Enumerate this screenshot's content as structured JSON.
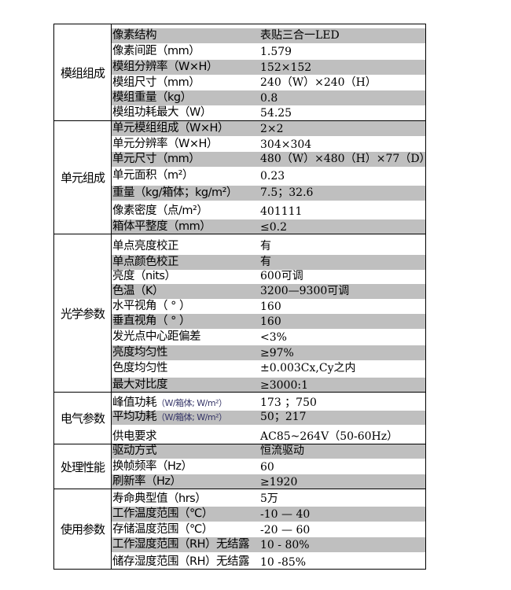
{
  "sections": [
    {
      "category": "模组组成",
      "rows": [
        {
          "label": "像素结构",
          "value": "表贴三合一LED"
        },
        {
          "label": "像素间距（mm）",
          "value": "1.579"
        },
        {
          "label": "模组分辨率（W×H）",
          "value": "152×152"
        },
        {
          "label": "模组尺寸（mm）",
          "value": "240（W）×240（H）"
        },
        {
          "label": "模组重量（kg）",
          "value": "0.8"
        },
        {
          "label": "模组功耗最大（W）",
          "value": "54.25"
        }
      ]
    },
    {
      "category": "单元组成",
      "rows": [
        {
          "label": "单元模组组成（W×H）",
          "value": "2×2"
        },
        {
          "label": "单元分辨率（W×H）",
          "value": "304×304"
        },
        {
          "label": "单元尺寸（mm）",
          "value": "480（W）×480（H）×77（D）"
        },
        {
          "label": "单元面积（m²）",
          "value": "0.23"
        },
        {
          "label": "重量（kg/箱体；kg/m²）",
          "value": "7.5；32.6"
        },
        {
          "label": "像素密度（点/m²）",
          "value": "401111"
        },
        {
          "label": "箱体平整度（mm）",
          "value": "≤0.2"
        }
      ]
    },
    {
      "category": "光学参数",
      "rows": [
        {
          "label": "单点亮度校正",
          "value": "有"
        },
        {
          "label": "单点颜色校正",
          "value": "有"
        },
        {
          "label": "亮度（nits）",
          "value": "600可调"
        },
        {
          "label": "色温（K）",
          "value": "3200—9300可调"
        },
        {
          "label": "水平视角（ ° ）",
          "value": "160"
        },
        {
          "label": "垂直视角（ ° ）",
          "value": "160"
        },
        {
          "label": "发光点中心距偏差",
          "value": "<3%"
        },
        {
          "label": "亮度均匀性",
          "value": "≥97%"
        },
        {
          "label": "色度均匀性",
          "value": "±0.003Cx,Cy之内"
        },
        {
          "label": "最大对比度",
          "value": "≥3000:1"
        }
      ]
    },
    {
      "category": "电气参数",
      "rows": [
        {
          "label": "峰值功耗",
          "unit": "（W/箱体; W/m²）",
          "value": "173 ；750"
        },
        {
          "label": "平均功耗",
          "unit": "（W/箱体; W/m²）",
          "value": "50；217"
        },
        {
          "label": "供电要求",
          "value": "AC85~264V（50-60Hz）"
        }
      ]
    },
    {
      "category": "处理性能",
      "rows": [
        {
          "label": "驱动方式",
          "value": "恒流驱动"
        },
        {
          "label": "换帧频率（Hz）",
          "value": "60"
        },
        {
          "label": "刷新率（Hz）",
          "value": "≥1920"
        }
      ]
    },
    {
      "category": "使用参数",
      "rows": [
        {
          "label": "寿命典型值（hrs）",
          "value": "5万"
        },
        {
          "label": "工作温度范围（℃）",
          "value": "-10 — 40"
        },
        {
          "label": "存储温度范围（℃）",
          "value": "-20 — 60"
        },
        {
          "label": "工作湿度范围（RH）无结露",
          "value": "10 - 80%"
        },
        {
          "label": "储存湿度范围（RH）无结露",
          "value": "10 -85%"
        }
      ]
    }
  ]
}
